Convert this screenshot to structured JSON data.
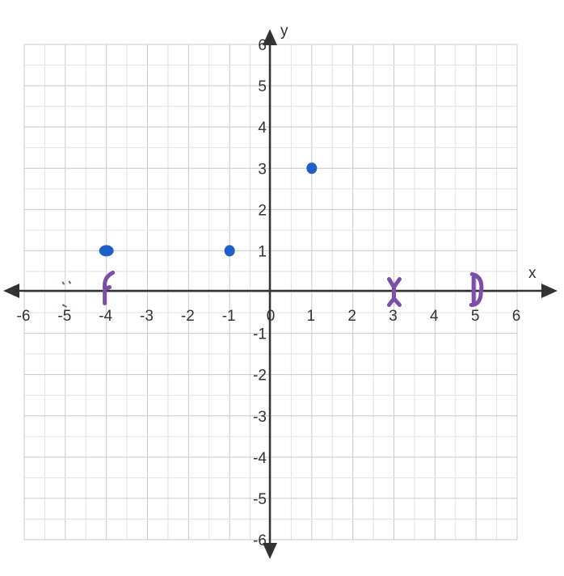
{
  "chart_data": {
    "type": "scatter",
    "xlim": [
      -6,
      6
    ],
    "ylim": [
      -6,
      6
    ],
    "grid": true,
    "xlabel": "x",
    "ylabel": "y",
    "x_ticks": [
      "-6",
      "-5",
      "-4",
      "-3",
      "-2",
      "-1",
      "0",
      "1",
      "2",
      "3",
      "4",
      "5",
      "6"
    ],
    "y_ticks": [
      "6",
      "5",
      "4",
      "3",
      "2",
      "1",
      "-1",
      "-2",
      "-3",
      "-4",
      "-5",
      "-6"
    ],
    "series": [
      {
        "color": "#1f5fc9",
        "points": [
          [
            -4,
            1
          ],
          [
            -1,
            1
          ],
          [
            1,
            3
          ]
        ]
      },
      {
        "color": "#7b4fa8",
        "marks": "hand-drawn x-axis marks",
        "points": [
          [
            -5,
            0
          ],
          [
            -4,
            0
          ],
          [
            3,
            0
          ],
          [
            5,
            0
          ]
        ]
      }
    ]
  }
}
